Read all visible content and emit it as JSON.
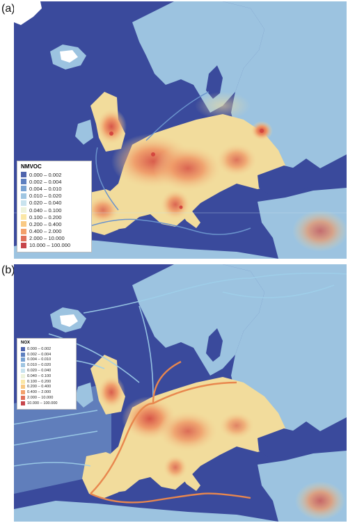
{
  "panels": [
    {
      "id": "a",
      "label": "(a)",
      "legend": {
        "title": "NMVOC",
        "items": [
          {
            "range": "0.000 – 0.002",
            "color": "#4f64ad"
          },
          {
            "range": "0.002 – 0.004",
            "color": "#5e80c0"
          },
          {
            "range": "0.004 – 0.010",
            "color": "#79a3d3"
          },
          {
            "range": "0.010 – 0.020",
            "color": "#a0c6e2"
          },
          {
            "range": "0.020 – 0.040",
            "color": "#c9e3ee"
          },
          {
            "range": "0.040 – 0.100",
            "color": "#eef3dc"
          },
          {
            "range": "0.100 – 0.200",
            "color": "#fbe7a6"
          },
          {
            "range": "0.200 – 0.400",
            "color": "#f9c984"
          },
          {
            "range": "0.400 – 2.000",
            "color": "#f3a06b"
          },
          {
            "range": "2.000 – 10.000",
            "color": "#e0705a"
          },
          {
            "range": "10.000 – 100.000",
            "color": "#c7454b"
          }
        ]
      }
    },
    {
      "id": "b",
      "label": "(b)",
      "legend": {
        "title": "NOX",
        "items": [
          {
            "range": "0.000 – 0.002",
            "color": "#4f64ad"
          },
          {
            "range": "0.002 – 0.004",
            "color": "#5e80c0"
          },
          {
            "range": "0.004 – 0.010",
            "color": "#79a3d3"
          },
          {
            "range": "0.010 – 0.020",
            "color": "#a0c6e2"
          },
          {
            "range": "0.020 – 0.040",
            "color": "#c9e3ee"
          },
          {
            "range": "0.040 – 0.100",
            "color": "#eef3dc"
          },
          {
            "range": "0.100 – 0.200",
            "color": "#fbe7a6"
          },
          {
            "range": "0.200 – 0.400",
            "color": "#f9c984"
          },
          {
            "range": "0.400 – 2.000",
            "color": "#f3a06b"
          },
          {
            "range": "2.000 – 10.000",
            "color": "#e0705a"
          },
          {
            "range": "10.000 – 100.000",
            "color": "#c7454b"
          }
        ]
      }
    }
  ],
  "colors": {
    "sea": "#3a4a9c",
    "land_low": "#9cc3e0",
    "land_mid": "#f2dc9c",
    "land_high": "#ef9564",
    "hotspot": "#d4473f",
    "snow": "#ffffff",
    "shipping_a": "#6a93cc",
    "shipping_b": "#9fd0ea",
    "shipping_b_major": "#e8874e"
  }
}
